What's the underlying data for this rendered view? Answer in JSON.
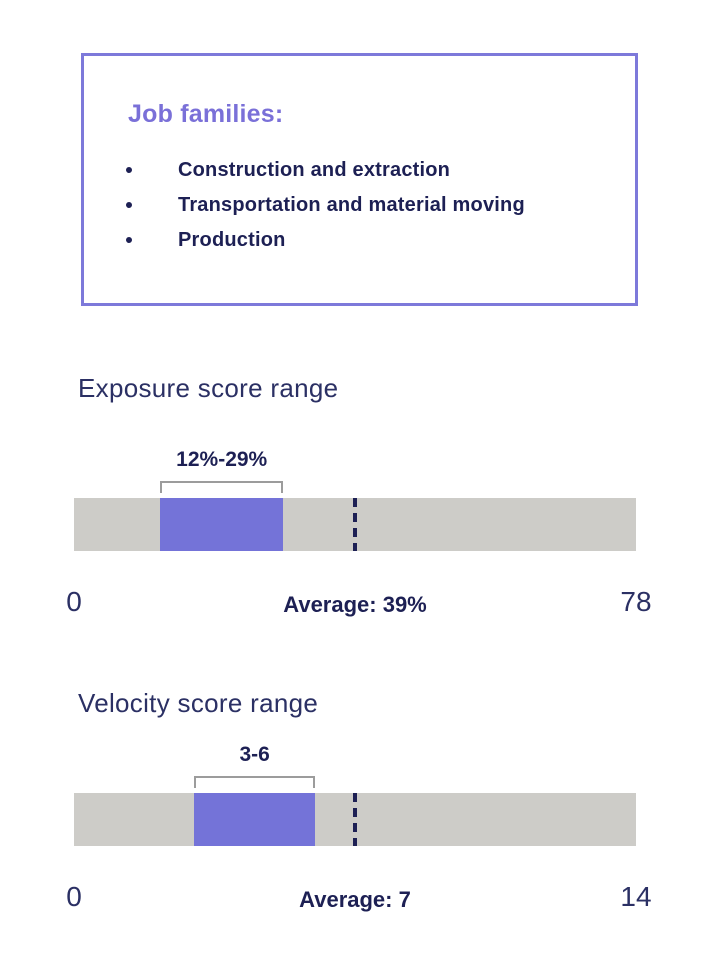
{
  "colors": {
    "purple_fill": "#7473d8",
    "purple_border": "#7d79da",
    "purple_title": "#7a70d8",
    "navy_text": "#1d2054",
    "navy_soft": "#2b3064",
    "track_gray": "#cdccc8",
    "bracket_gray": "#9c9c9c"
  },
  "job_families": {
    "title": "Job families:",
    "items": [
      "Construction and extraction",
      "Transportation and material moving",
      "Production"
    ]
  },
  "chart_data": [
    {
      "type": "bar",
      "variant": "range-strip",
      "title": "Exposure score range",
      "range_label": "12%-29%",
      "range_min": 12,
      "range_max": 29,
      "average": 39,
      "average_label": "Average: 39%",
      "axis_min": 0,
      "axis_max": 78,
      "axis_min_label": "0",
      "axis_max_label": "78",
      "legend": "none",
      "grid": false
    },
    {
      "type": "bar",
      "variant": "range-strip",
      "title": "Velocity score range",
      "range_label": "3-6",
      "range_min": 3,
      "range_max": 6,
      "average": 7,
      "average_label": "Average: 7",
      "axis_min": 0,
      "axis_max": 14,
      "axis_min_label": "0",
      "axis_max_label": "14",
      "legend": "none",
      "grid": false
    }
  ]
}
